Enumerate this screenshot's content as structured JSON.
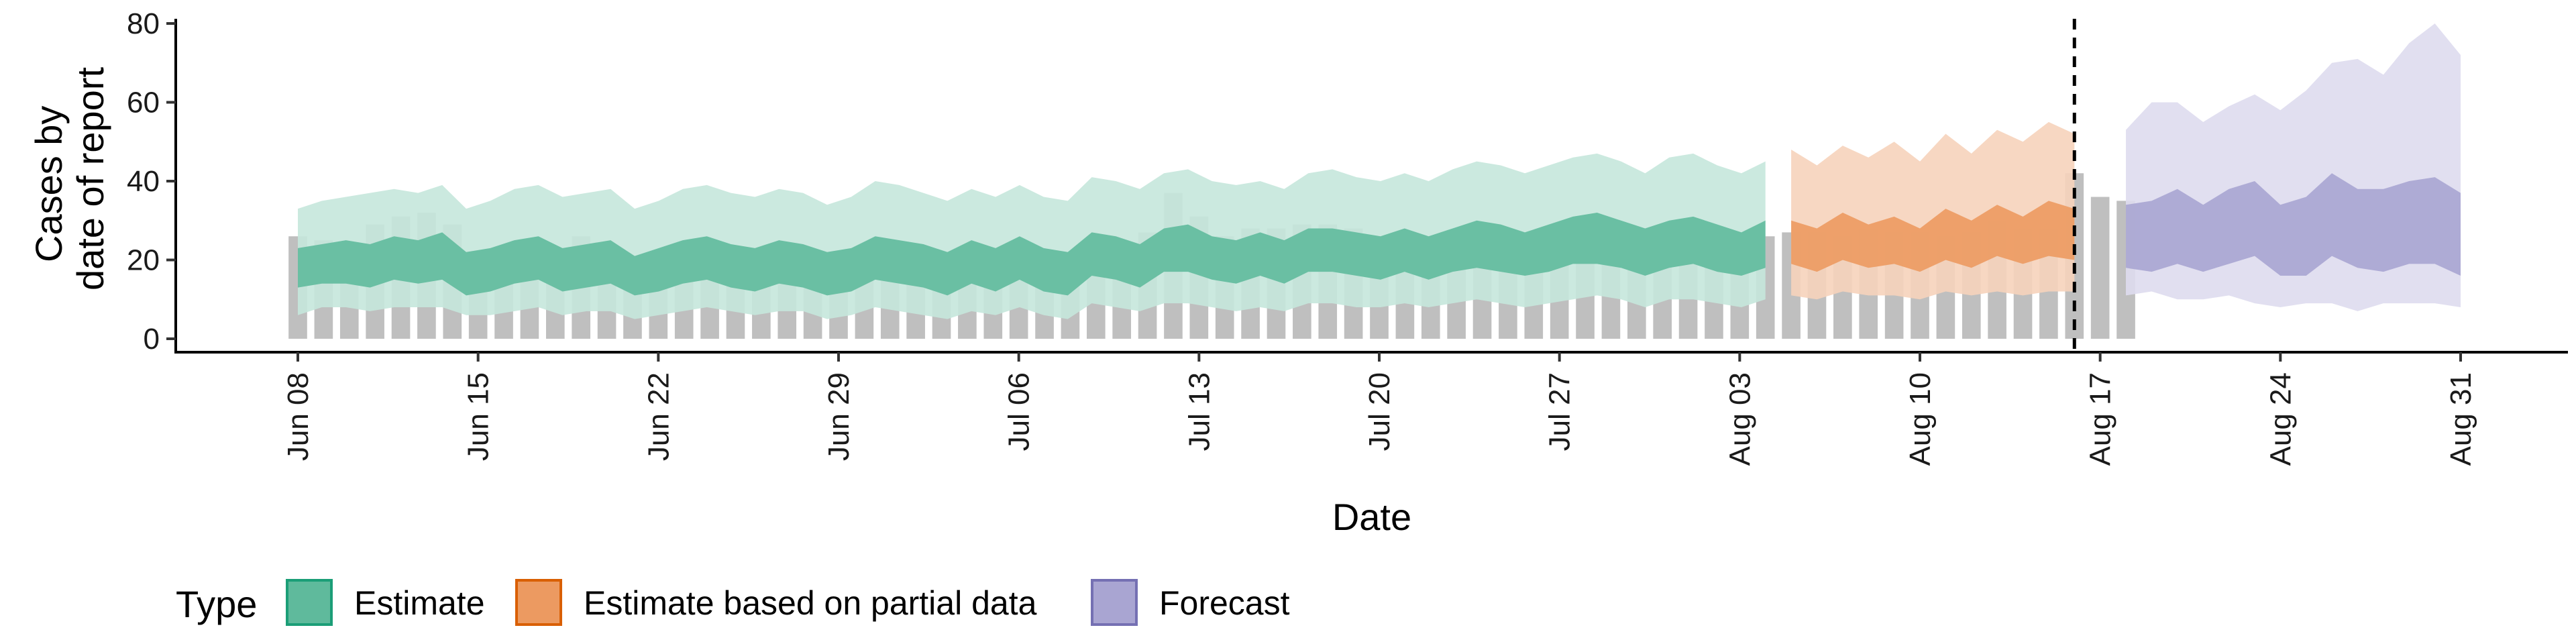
{
  "chart_data": {
    "type": "area",
    "xlabel": "Date",
    "ylabel_lines": [
      "Cases by",
      "date of report"
    ],
    "ylim": [
      0,
      80
    ],
    "y_ticks": [
      0,
      20,
      40,
      60,
      80
    ],
    "x_range": [
      "2020-06-08",
      "2020-08-31"
    ],
    "x_ticks": [
      {
        "date": "2020-06-08",
        "label": "Jun 08"
      },
      {
        "date": "2020-06-15",
        "label": "Jun 15"
      },
      {
        "date": "2020-06-22",
        "label": "Jun 22"
      },
      {
        "date": "2020-06-29",
        "label": "Jun 29"
      },
      {
        "date": "2020-07-06",
        "label": "Jul 06"
      },
      {
        "date": "2020-07-13",
        "label": "Jul 13"
      },
      {
        "date": "2020-07-20",
        "label": "Jul 20"
      },
      {
        "date": "2020-07-27",
        "label": "Jul 27"
      },
      {
        "date": "2020-08-03",
        "label": "Aug 03"
      },
      {
        "date": "2020-08-10",
        "label": "Aug 10"
      },
      {
        "date": "2020-08-17",
        "label": "Aug 17"
      },
      {
        "date": "2020-08-24",
        "label": "Aug 24"
      },
      {
        "date": "2020-08-31",
        "label": "Aug 31"
      }
    ],
    "forecast_start": "2020-08-17",
    "grid": false,
    "legend_position": "bottom-left",
    "legend_title": "Type",
    "reported_cases": {
      "color": "#a9a9a9",
      "dates_start": "2020-06-08",
      "values": [
        26,
        25,
        21,
        29,
        31,
        32,
        29,
        17,
        15,
        17,
        23,
        26,
        21,
        19,
        16,
        20,
        20,
        20,
        17,
        19,
        18,
        20,
        20,
        20,
        17,
        19,
        21,
        20,
        20,
        18,
        20,
        19,
        17,
        27,
        37,
        31,
        26,
        28,
        28,
        29,
        29,
        28,
        26,
        26,
        26,
        25,
        24,
        26,
        26,
        26,
        25,
        25,
        26,
        26,
        27,
        27,
        26,
        26,
        27,
        27,
        26,
        28,
        27,
        27,
        26,
        27,
        30,
        28,
        28,
        42,
        36,
        35
      ]
    },
    "series": [
      {
        "name": "Estimate",
        "color": "#1b9e77",
        "fill_light": "#c5e7dc",
        "fill_dark": "#5fba9c",
        "x_start": "2020-06-08",
        "x_end": "2020-08-04",
        "outer_upper": [
          33,
          35,
          36,
          37,
          38,
          37,
          39,
          33,
          35,
          38,
          39,
          36,
          37,
          38,
          33,
          35,
          38,
          39,
          37,
          36,
          38,
          37,
          34,
          36,
          40,
          39,
          37,
          35,
          38,
          36,
          39,
          36,
          35,
          41,
          40,
          38,
          42,
          43,
          40,
          39,
          40,
          38,
          42,
          43,
          41,
          40,
          42,
          40,
          43,
          45,
          44,
          42,
          44,
          46,
          47,
          45,
          42,
          46,
          47,
          44,
          42,
          45
        ],
        "inner_upper": [
          23,
          24,
          25,
          24,
          26,
          25,
          27,
          22,
          23,
          25,
          26,
          23,
          24,
          25,
          21,
          23,
          25,
          26,
          24,
          23,
          25,
          24,
          22,
          23,
          26,
          25,
          24,
          22,
          25,
          23,
          26,
          23,
          22,
          27,
          26,
          24,
          28,
          29,
          26,
          25,
          27,
          25,
          28,
          28,
          27,
          26,
          28,
          26,
          28,
          30,
          29,
          27,
          29,
          31,
          32,
          30,
          28,
          30,
          31,
          29,
          27,
          30
        ],
        "inner_lower": [
          13,
          14,
          14,
          13,
          15,
          14,
          15,
          11,
          12,
          14,
          15,
          12,
          13,
          14,
          11,
          12,
          14,
          15,
          13,
          12,
          14,
          13,
          11,
          12,
          15,
          14,
          13,
          11,
          14,
          12,
          15,
          12,
          11,
          16,
          15,
          13,
          17,
          17,
          15,
          14,
          16,
          14,
          17,
          17,
          16,
          15,
          17,
          15,
          17,
          18,
          17,
          16,
          17,
          19,
          19,
          18,
          16,
          18,
          19,
          17,
          16,
          18
        ],
        "outer_lower": [
          6,
          8,
          8,
          7,
          8,
          8,
          8,
          6,
          6,
          7,
          8,
          6,
          7,
          7,
          5,
          6,
          7,
          8,
          7,
          6,
          7,
          7,
          5,
          6,
          8,
          7,
          6,
          5,
          7,
          6,
          8,
          6,
          5,
          9,
          8,
          7,
          9,
          9,
          8,
          7,
          8,
          7,
          9,
          9,
          8,
          8,
          9,
          8,
          9,
          10,
          9,
          8,
          9,
          10,
          11,
          10,
          8,
          10,
          10,
          9,
          8,
          10
        ]
      },
      {
        "name": "Estimate based on partial data",
        "color": "#d95f02",
        "fill_light": "#f6d3bb",
        "fill_dark": "#ec9a61",
        "x_start": "2020-08-05",
        "x_end": "2020-08-16",
        "outer_upper": [
          48,
          44,
          49,
          46,
          50,
          45,
          52,
          47,
          53,
          50,
          55,
          52
        ],
        "inner_upper": [
          30,
          28,
          32,
          29,
          31,
          28,
          33,
          30,
          34,
          31,
          35,
          33
        ],
        "inner_lower": [
          19,
          17,
          20,
          18,
          19,
          17,
          20,
          18,
          21,
          19,
          21,
          20
        ],
        "outer_lower": [
          11,
          10,
          12,
          11,
          11,
          10,
          12,
          11,
          12,
          11,
          12,
          12
        ]
      },
      {
        "name": "Forecast",
        "color": "#7570b3",
        "fill_light": "#dedcee",
        "fill_dark": "#a9a5d2",
        "x_start": "2020-08-18",
        "x_end": "2020-08-31",
        "outer_upper": [
          53,
          60,
          60,
          55,
          59,
          62,
          58,
          63,
          70,
          71,
          67,
          75,
          80,
          72
        ],
        "inner_upper": [
          34,
          35,
          38,
          34,
          38,
          40,
          34,
          36,
          42,
          38,
          38,
          40,
          41,
          37
        ],
        "inner_lower": [
          18,
          17,
          19,
          17,
          19,
          21,
          16,
          16,
          21,
          18,
          17,
          19,
          19,
          16
        ],
        "outer_lower": [
          11,
          12,
          10,
          10,
          11,
          9,
          8,
          9,
          9,
          7,
          9,
          9,
          9,
          8
        ]
      }
    ]
  }
}
